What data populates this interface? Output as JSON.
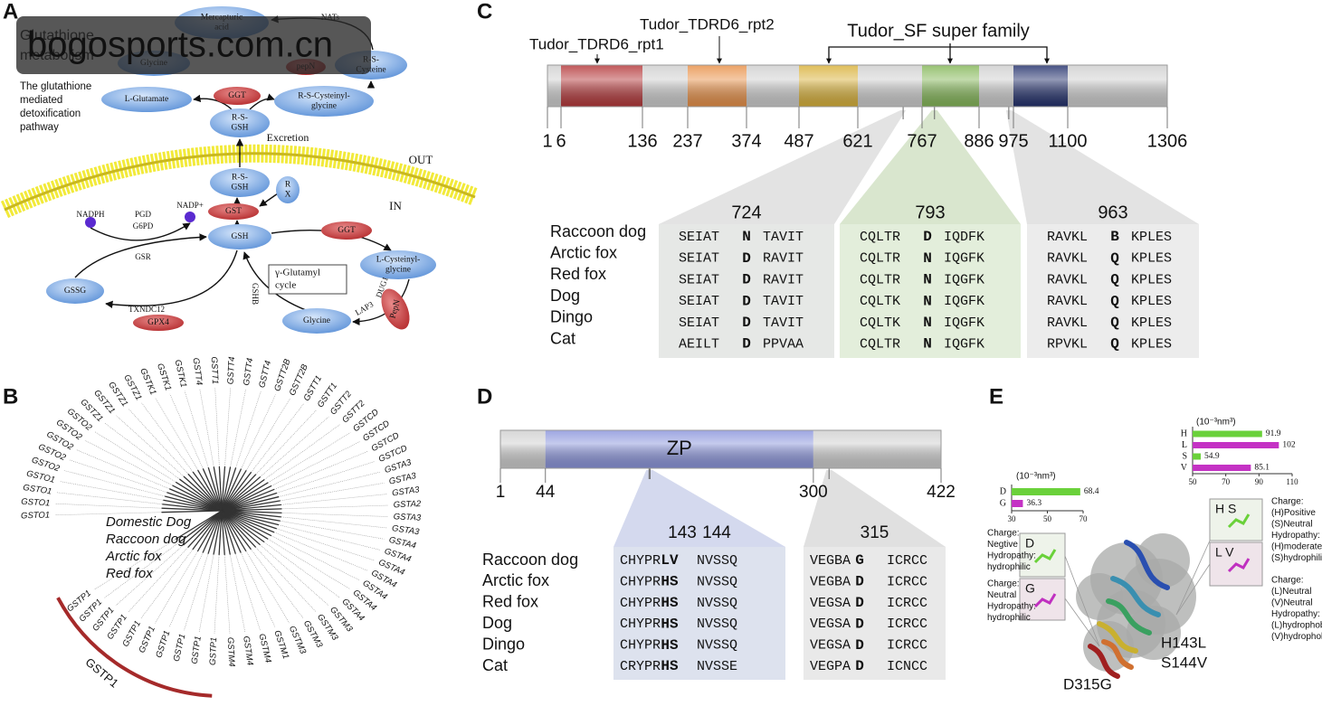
{
  "watermark": "bogosports.com.cn",
  "panel_a": {
    "label": "A",
    "title": [
      "Glutathione",
      "metabolism"
    ],
    "caption": [
      "The glutathione",
      "mediated",
      "detoxification",
      "pathway"
    ],
    "nodes": [
      {
        "lines": [
          "Mercapturic",
          "acid"
        ]
      },
      {
        "lines": [
          "R-S-",
          "Cysteine"
        ]
      },
      {
        "lines": [
          "Glycine"
        ]
      },
      {
        "lines": [
          "pepN"
        ]
      },
      {
        "lines": [
          "L-Glutamate"
        ]
      },
      {
        "lines": [
          "GGT"
        ]
      },
      {
        "lines": [
          "R-S-Cysteinyl-",
          "glycine"
        ]
      },
      {
        "lines": [
          "R-S-",
          "GSH"
        ]
      },
      {
        "lines": [
          "R-S-",
          "GSH"
        ]
      },
      {
        "lines": [
          "R",
          "X"
        ]
      },
      {
        "lines": [
          "GST"
        ]
      },
      {
        "lines": [
          "GSH"
        ]
      },
      {
        "lines": [
          "GGT"
        ]
      },
      {
        "lines": [
          "L-Cysteinyl-",
          "glycine"
        ]
      },
      {
        "lines": [
          "GSSG"
        ]
      },
      {
        "lines": [
          "GPX4"
        ]
      },
      {
        "lines": [
          "Glycine"
        ]
      },
      {
        "lines": [
          "PepN"
        ]
      }
    ],
    "labels": [
      "NATs",
      "Excretion",
      "OUT",
      "IN",
      "NADPH",
      "PGD",
      "G6PD",
      "NADP+",
      "GSR",
      "TXNDC12",
      "GSHB",
      "LAP3",
      "DUG1"
    ],
    "cycle_box": [
      "γ-Glutamyl",
      "cycle"
    ]
  },
  "panel_b": {
    "label": "B",
    "legend": [
      {
        "name": "Domestic Dog",
        "color": "#2d3370"
      },
      {
        "name": "Raccoon dog",
        "color": "#a52a2a"
      },
      {
        "name": "Arctic fox",
        "color": "#3f7a3f"
      },
      {
        "name": "Red fox",
        "color": "#3b2466"
      }
    ],
    "leaves": [
      {
        "text": "GSTO1",
        "color": "#2d3370"
      },
      {
        "text": "GSTO1",
        "color": "#2d3370"
      },
      {
        "text": "GSTO1",
        "color": "#3f7a3f"
      },
      {
        "text": "GSTO1",
        "color": "#a52a2a"
      },
      {
        "text": "GSTO2",
        "color": "#2d3370"
      },
      {
        "text": "GSTO2",
        "color": "#a52a2a"
      },
      {
        "text": "GSTO2",
        "color": "#a52a2a"
      },
      {
        "text": "GSTO2",
        "color": "#2d3370"
      },
      {
        "text": "GSTO2",
        "color": "#3f7a3f"
      },
      {
        "text": "GSTZ1",
        "color": "#2d3370"
      },
      {
        "text": "GSTZ1",
        "color": "#a52a2a"
      },
      {
        "text": "GSTZ1",
        "color": "#2d3370"
      },
      {
        "text": "GSTZ1",
        "color": "#3f7a3f"
      },
      {
        "text": "GSTK1",
        "color": "#a52a2a"
      },
      {
        "text": "GSTK1",
        "color": "#3f7a3f"
      },
      {
        "text": "GSTK1",
        "color": "#2d3370"
      },
      {
        "text": "GSTT4",
        "color": "#a52a2a"
      },
      {
        "text": "GSTT1",
        "color": "#a52a2a"
      },
      {
        "text": "GSTT4",
        "color": "#3f7a3f"
      },
      {
        "text": "GSTT4",
        "color": "#2d3370"
      },
      {
        "text": "GSTT4",
        "color": "#2d3370"
      },
      {
        "text": "GSTT2B",
        "color": "#3f7a3f"
      },
      {
        "text": "GSTT2B",
        "color": "#a52a2a"
      },
      {
        "text": "GSTT1",
        "color": "#3f7a3f"
      },
      {
        "text": "GSTT1",
        "color": "#a52a2a"
      },
      {
        "text": "GSTT2",
        "color": "#3f7a3f"
      },
      {
        "text": "GSTT2",
        "color": "#a52a2a"
      },
      {
        "text": "GSTCD",
        "color": "#a52a2a"
      },
      {
        "text": "GSTCD",
        "color": "#2d3370"
      },
      {
        "text": "GSTCD",
        "color": "#3f7a3f"
      },
      {
        "text": "GSTCD",
        "color": "#2d3370"
      },
      {
        "text": "GSTA3",
        "color": "#a52a2a"
      },
      {
        "text": "GSTA3",
        "color": "#2d3370"
      },
      {
        "text": "GSTA3",
        "color": "#3f7a3f"
      },
      {
        "text": "GSTA2",
        "color": "#a52a2a"
      },
      {
        "text": "GSTA3",
        "color": "#a52a2a"
      },
      {
        "text": "GSTA3",
        "color": "#3f7a3f"
      },
      {
        "text": "GSTA4",
        "color": "#a52a2a"
      },
      {
        "text": "GSTA4",
        "color": "#a52a2a"
      },
      {
        "text": "GSTA4",
        "color": "#a52a2a"
      },
      {
        "text": "GSTA4",
        "color": "#2d3370"
      },
      {
        "text": "GSTA4",
        "color": "#3f7a3f"
      },
      {
        "text": "GSTA4",
        "color": "#2d3370"
      },
      {
        "text": "GSTA4",
        "color": "#a52a2a"
      },
      {
        "text": "GSTM3",
        "color": "#2d3370"
      },
      {
        "text": "GSTM3",
        "color": "#3f7a3f"
      },
      {
        "text": "GSTM3",
        "color": "#a52a2a"
      },
      {
        "text": "GSTM3",
        "color": "#a52a2a"
      },
      {
        "text": "GSTM1",
        "color": "#a52a2a"
      },
      {
        "text": "GSTM4",
        "color": "#a52a2a"
      },
      {
        "text": "GSTM4",
        "color": "#3f7a3f"
      },
      {
        "text": "GSTM4",
        "color": "#2d3370"
      },
      {
        "text": "GSTP1",
        "color": "#a52a2a"
      },
      {
        "text": "GSTP1",
        "color": "#2d3370"
      },
      {
        "text": "GSTP1",
        "color": "#a52a2a"
      },
      {
        "text": "GSTP1",
        "color": "#3f7a3f"
      },
      {
        "text": "GSTP1",
        "color": "#a52a2a"
      },
      {
        "text": "GSTP1",
        "color": "#a52a2a"
      },
      {
        "text": "GSTP1",
        "color": "#a52a2a"
      },
      {
        "text": "GSTP1",
        "color": "#a52a2a"
      },
      {
        "text": "GSTP1",
        "color": "#a52a2a"
      },
      {
        "text": "GSTP1",
        "color": "#a52a2a"
      }
    ],
    "clade_label": "GSTP1",
    "clade_color": "#a52a2a"
  },
  "panel_c": {
    "label": "C",
    "domain_labels": [
      "Tudor_TDRD6_rpt1",
      "Tudor_TDRD6_rpt2",
      "Tudor_SF super family"
    ],
    "positions": [
      1,
      6,
      136,
      237,
      374,
      487,
      621,
      767,
      886,
      975,
      1100,
      1306
    ],
    "segment_colors": [
      "#d0d0d0",
      "#b53a3c",
      "#cfcfcf",
      "#e8924a",
      "#cfcfcf",
      "#d9b23c",
      "#cfcfcf",
      "#86b85a",
      "#cfcfcf",
      "#26336e",
      "#cfcfcf"
    ],
    "species": [
      "Raccoon dog",
      "Arctic fox",
      "Red fox",
      "Dog",
      "Dingo",
      "Cat"
    ],
    "highlight_color": "#c0282d",
    "sites": [
      {
        "position": 724,
        "box_color": "#e6e8e6",
        "rows": [
          [
            "SEIAT",
            "N",
            "TAVIT"
          ],
          [
            "SEIAT",
            "D",
            "RAVIT"
          ],
          [
            "SEIAT",
            "D",
            "RAVIT"
          ],
          [
            "SEIAT",
            "D",
            "TAVIT"
          ],
          [
            "SEIAT",
            "D",
            "TAVIT"
          ],
          [
            "AEILT",
            "D",
            "PPVAA"
          ]
        ]
      },
      {
        "position": 793,
        "box_color": "#e3eedb",
        "rows": [
          [
            "CQLTR",
            "D",
            "IQDFK"
          ],
          [
            "CQLTR",
            "N",
            "IQGFK"
          ],
          [
            "CQLTR",
            "N",
            "IQGFK"
          ],
          [
            "CQLTK",
            "N",
            "IQGFK"
          ],
          [
            "CQLTK",
            "N",
            "IQGFK"
          ],
          [
            "CQLTR",
            "N",
            "IQGFK"
          ]
        ]
      },
      {
        "position": 963,
        "box_color": "#ececec",
        "rows": [
          [
            "RAVKL",
            "B",
            "KPLES"
          ],
          [
            "RAVKL",
            "Q",
            "KPLES"
          ],
          [
            "RAVKL",
            "Q",
            "KPLES"
          ],
          [
            "RAVKL",
            "Q",
            "KPLES"
          ],
          [
            "RAVKL",
            "Q",
            "KPLES"
          ],
          [
            "RPVKL",
            "Q",
            "KPLES"
          ]
        ]
      }
    ]
  },
  "panel_d": {
    "label": "D",
    "domain": "ZP",
    "positions": [
      1,
      44,
      300,
      422
    ],
    "segment_colors": [
      "#cfcfcf",
      "#8c96dc",
      "#cfcfcf"
    ],
    "species": [
      "Raccoon dog",
      "Arctic fox",
      "Red fox",
      "Dog",
      "Dingo",
      "Cat"
    ],
    "highlight_color": "#c0282d",
    "sites": [
      {
        "positions": [
          143,
          144
        ],
        "box_color": "#dde2ee",
        "rows": [
          [
            "CHYPR",
            "LV",
            "NVSSQ"
          ],
          [
            "CHYPR",
            "HS",
            "NVSSQ"
          ],
          [
            "CHYPR",
            "HS",
            "NVSSQ"
          ],
          [
            "CHYPR",
            "HS",
            "NVSSQ"
          ],
          [
            "CHYPR",
            "HS",
            "NVSSQ"
          ],
          [
            "CRYPR",
            "HS",
            "NVSSE"
          ]
        ]
      },
      {
        "positions": [
          315
        ],
        "box_color": "#e9e9e9",
        "rows": [
          [
            "VEGBA",
            "G",
            "ICRCC"
          ],
          [
            "VEGBA",
            "D",
            "ICRCC"
          ],
          [
            "VEGSA",
            "D",
            "ICRCC"
          ],
          [
            "VEGSA",
            "D",
            "ICRCC"
          ],
          [
            "VEGSA",
            "D",
            "ICRCC"
          ],
          [
            "VEGPA",
            "D",
            "ICNCC"
          ]
        ]
      }
    ]
  },
  "panel_e": {
    "label": "E",
    "charts": [
      {
        "type": "bar",
        "unit": "(10⁻³nm³)",
        "categories": [
          "D",
          "G"
        ],
        "values": [
          68.4,
          36.3
        ],
        "colors": [
          "#6ad13a",
          "#c432c4"
        ],
        "xlim": [
          30,
          70
        ],
        "xticks": [
          30,
          50,
          70
        ]
      },
      {
        "type": "bar",
        "unit": "(10⁻³nm³)",
        "categories": [
          "H",
          "L",
          "S",
          "V"
        ],
        "values": [
          91.9,
          102,
          54.9,
          85.1
        ],
        "colors": [
          "#6ad13a",
          "#c432c4",
          "#6ad13a",
          "#c432c4"
        ],
        "xlim": [
          50,
          110
        ],
        "xticks": [
          50,
          70,
          90,
          110
        ]
      }
    ],
    "inset_labels": [
      "D",
      "G",
      "H S",
      "L V"
    ],
    "notes": [
      {
        "lines": [
          "Charge:",
          "Negtive",
          "Hydropathy:",
          "hydrophilic"
        ],
        "color": "#5b9bd5"
      },
      {
        "lines": [
          "Charge:",
          "Neutral",
          "Hydropathy:",
          "hydrophilic"
        ],
        "color": "#c030c0"
      },
      {
        "lines": [
          "Charge:",
          "(H)Positive",
          "(S)Neutral",
          "Hydropathy:",
          "(H)moderate",
          "(S)hydrophilic"
        ],
        "color": "#5b9bd5"
      },
      {
        "lines": [
          "Charge:",
          "(L)Neutral",
          "(V)Neutral",
          "Hydropathy:",
          "(L)hydrophobic",
          "(V)hydrophobic"
        ],
        "color": "#c030c0"
      }
    ],
    "mutations": [
      "H143L",
      "S144V",
      "D315G"
    ],
    "mutation_color": "#8b1a1a"
  }
}
